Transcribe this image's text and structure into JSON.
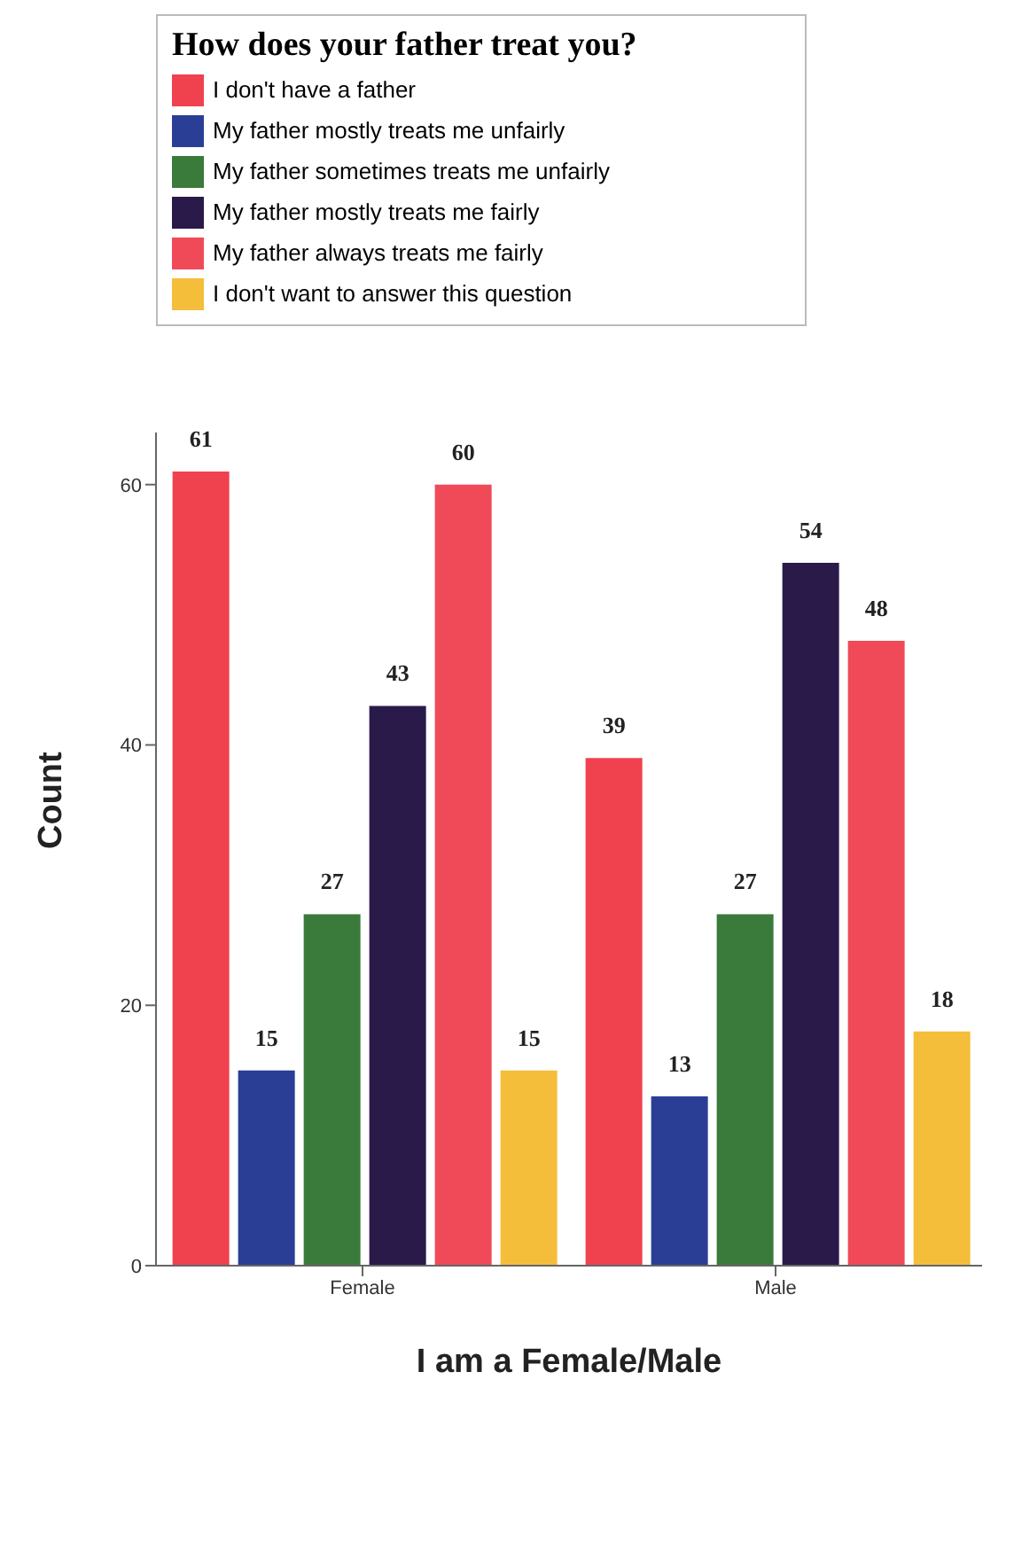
{
  "chart_data": {
    "type": "bar",
    "legend_title": "How does your father treat you?",
    "xlabel": "I am a Female/Male",
    "ylabel": "Count",
    "categories": [
      "Female",
      "Male"
    ],
    "series": [
      {
        "name": "I don't have a father",
        "color": "#f0424e",
        "values": [
          61,
          39
        ]
      },
      {
        "name": "My father mostly treats me unfairly",
        "color": "#2a3e96",
        "values": [
          15,
          13
        ]
      },
      {
        "name": "My father sometimes treats me unfairly",
        "color": "#3a7a3a",
        "values": [
          27,
          27
        ]
      },
      {
        "name": "My father mostly treats me fairly",
        "color": "#2a1a4a",
        "values": [
          43,
          54
        ]
      },
      {
        "name": "My father always treats me fairly",
        "color": "#f04a58",
        "values": [
          60,
          48
        ]
      },
      {
        "name": "I don't want to answer this question",
        "color": "#f5be3a",
        "values": [
          15,
          18
        ]
      }
    ],
    "ylim": [
      0,
      64
    ],
    "yticks": [
      0,
      20,
      40,
      60
    ],
    "data_labels": true,
    "grid": false,
    "legend": "top"
  }
}
